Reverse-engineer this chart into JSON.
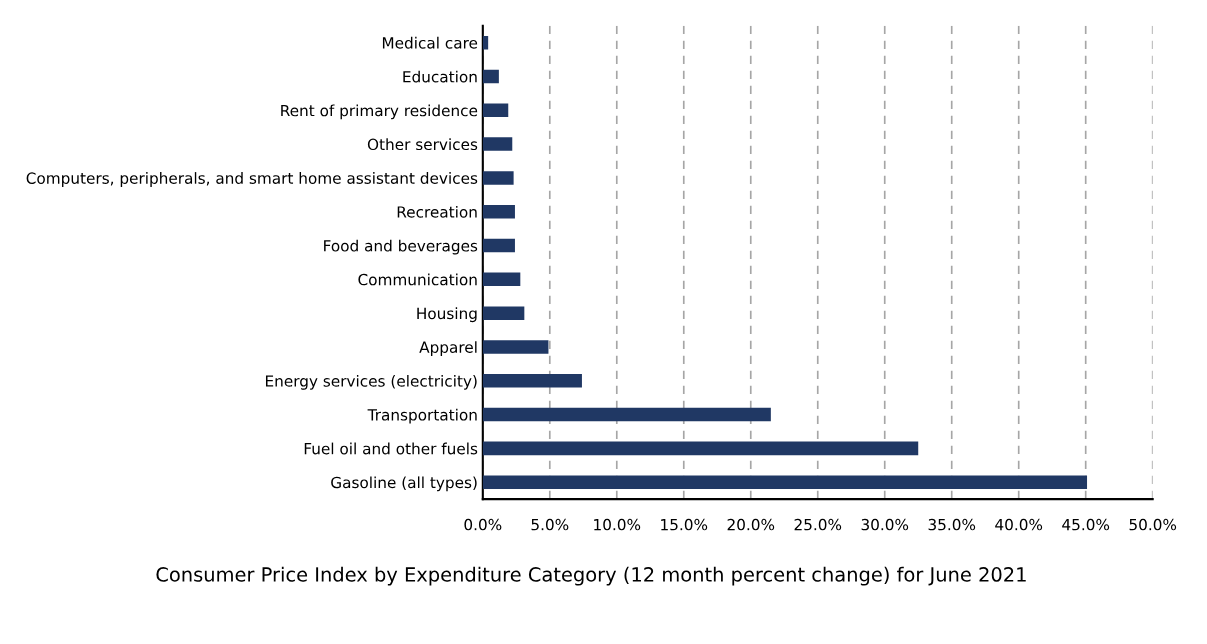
{
  "chart_data": {
    "type": "bar",
    "orientation": "horizontal",
    "title": "Consumer Price Index by Expenditure Category (12 month percent change) for June 2021",
    "categories": [
      "Medical care",
      "Education",
      "Rent of primary residence",
      "Other services",
      "Computers, peripherals, and smart home assistant devices",
      "Recreation",
      "Food and beverages",
      "Communication",
      "Housing",
      "Apparel",
      "Energy services (electricity)",
      "Transportation",
      "Fuel oil and other fuels",
      "Gasoline (all types)"
    ],
    "values": [
      0.4,
      1.2,
      1.9,
      2.2,
      2.3,
      2.4,
      2.4,
      2.8,
      3.1,
      4.9,
      7.4,
      21.5,
      32.5,
      45.1
    ],
    "color": "#203864",
    "xlim": [
      0,
      50
    ],
    "xticks": [
      {
        "value": 0,
        "label": "0.0%"
      },
      {
        "value": 5,
        "label": "5.0%"
      },
      {
        "value": 10,
        "label": "10.0%"
      },
      {
        "value": 15,
        "label": "15.0%"
      },
      {
        "value": 20,
        "label": "20.0%"
      },
      {
        "value": 25,
        "label": "25.0%"
      },
      {
        "value": 30,
        "label": "30.0%"
      },
      {
        "value": 35,
        "label": "35.0%"
      },
      {
        "value": 40,
        "label": "40.0%"
      },
      {
        "value": 45,
        "label": "45.0%"
      },
      {
        "value": 50,
        "label": "50.0%"
      }
    ],
    "grid": "x",
    "legend": false
  }
}
